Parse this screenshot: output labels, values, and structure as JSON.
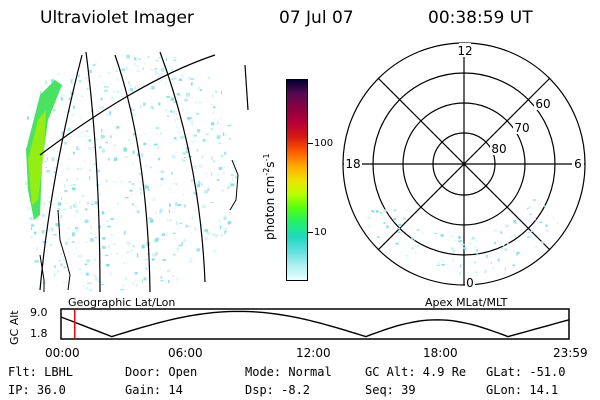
{
  "header": {
    "instrument": "Ultraviolet Imager",
    "date": "07 Jul 07",
    "time": "00:38:59 UT"
  },
  "colorbar": {
    "label": "photon cm",
    "label_exp1": "-2",
    "label_mid": "s",
    "label_exp2": "-1",
    "ticks": [
      "100",
      "10"
    ],
    "colors": [
      "#000030",
      "#5a0a55",
      "#8b0040",
      "#b8003a",
      "#d81a12",
      "#ff5800",
      "#ffa800",
      "#f0e000",
      "#b8ff00",
      "#50ff10",
      "#20ef70",
      "#20d8c0",
      "#60e0e0",
      "#b0f0f0",
      "#e8ffff"
    ]
  },
  "polar_plot": {
    "mlt_labels": {
      "top": "12",
      "left": "18",
      "right": "6",
      "bottom": "0"
    },
    "lat_labels": [
      "60",
      "70",
      "80"
    ]
  },
  "timeline": {
    "y_axis_label": "GC Alt",
    "y_ticks": [
      "9.0",
      "1.8"
    ],
    "left_caption": "Geographic Lat/Lon",
    "right_caption": "Apex MLat/MLT",
    "x_ticks": [
      "00:00",
      "06:00",
      "12:00",
      "18:00",
      "23:59"
    ],
    "current_fraction": 0.027,
    "marker_color": "#ff0000"
  },
  "info": {
    "flt": "Flt: LBHL",
    "door": "Door: Open",
    "mode": "Mode: Normal",
    "gc_alt": "GC Alt: 4.9 Re",
    "glat": "GLat: -51.0",
    "ip": "IP: 36.0",
    "gain": "Gain: 14",
    "dsp": "Dsp:   -8.2",
    "seq": "Seq: 39",
    "glon": "GLon:  14.1"
  }
}
